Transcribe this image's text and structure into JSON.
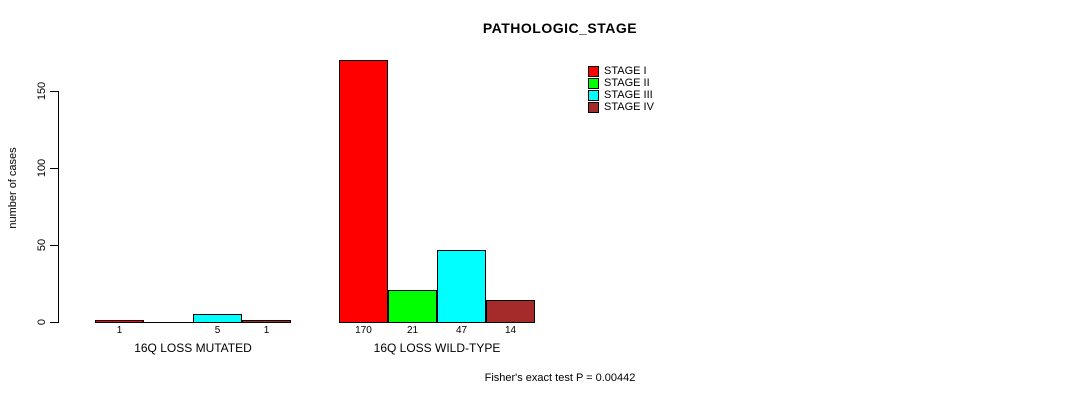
{
  "chart_data": {
    "type": "bar",
    "title": "PATHOLOGIC_STAGE",
    "ylabel": "number of cases",
    "xlabel": "",
    "ylim": [
      0,
      175
    ],
    "yticks": [
      0,
      50,
      100,
      150
    ],
    "grid": false,
    "legend_position": "top-right",
    "categories": [
      "16Q LOSS MUTATED",
      "16Q LOSS WILD-TYPE"
    ],
    "series": [
      {
        "name": "STAGE I",
        "color": "#FF0000",
        "values": [
          1,
          170
        ]
      },
      {
        "name": "STAGE II",
        "color": "#00FF00",
        "values": [
          0,
          21
        ]
      },
      {
        "name": "STAGE III",
        "color": "#00FFFF",
        "values": [
          5,
          47
        ]
      },
      {
        "name": "STAGE IV",
        "color": "#A52A2A",
        "values": [
          1,
          14
        ]
      }
    ],
    "bar_value_labels": [
      [
        "1",
        "",
        "5",
        "1"
      ],
      [
        "170",
        "21",
        "47",
        "14"
      ]
    ],
    "footer": "Fisher's exact test P = 0.00442"
  }
}
